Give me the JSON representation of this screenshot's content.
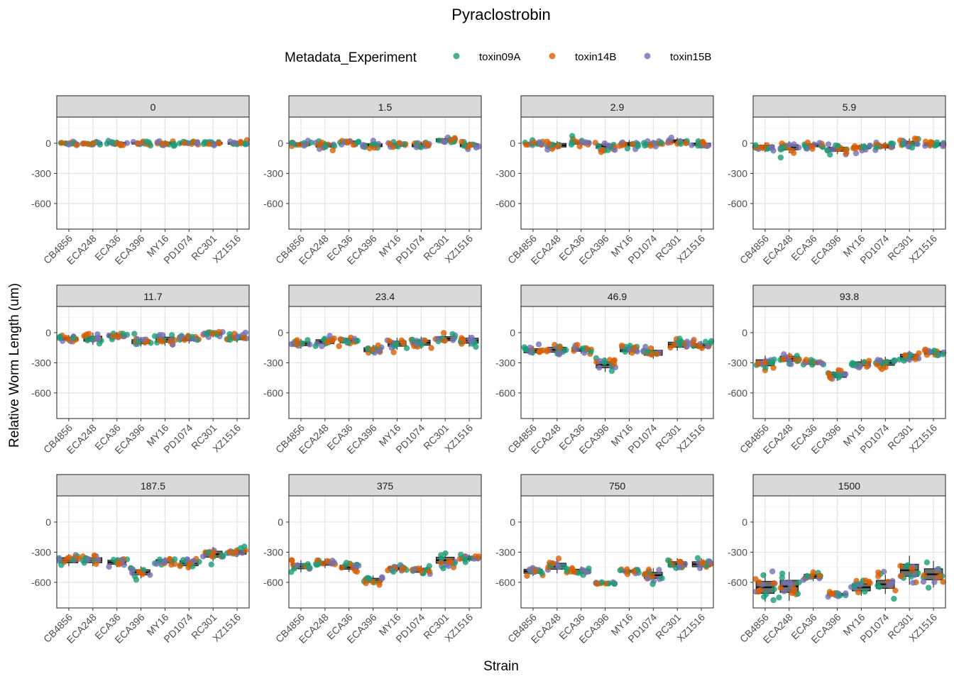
{
  "chart_data": {
    "type": "box-jitter",
    "title": "Pyraclostrobin",
    "xlabel": "Strain",
    "ylabel": "Relative Worm Length (um)",
    "legend": {
      "title": "Metadata_Experiment",
      "position": "top",
      "entries": [
        {
          "name": "toxin09A",
          "color": "#1b9e77"
        },
        {
          "name": "toxin14B",
          "color": "#d95f02"
        },
        {
          "name": "toxin15B",
          "color": "#7570b3"
        }
      ]
    },
    "categories": [
      "CB4856",
      "ECA248",
      "ECA36",
      "ECA396",
      "MY16",
      "PD1074",
      "RC301",
      "XZ1516"
    ],
    "yticks": [
      0,
      -300,
      -600
    ],
    "ylim": [
      -855,
      261
    ],
    "grid": true,
    "facets": [
      {
        "label": "0",
        "medians": [
          0,
          0,
          0,
          0,
          0,
          0,
          0,
          0
        ],
        "spread": [
          20,
          20,
          20,
          20,
          25,
          20,
          20,
          20
        ]
      },
      {
        "label": "1.5",
        "medians": [
          -10,
          -20,
          10,
          -20,
          -15,
          -20,
          30,
          -20
        ],
        "spread": [
          25,
          35,
          25,
          30,
          30,
          30,
          30,
          30
        ]
      },
      {
        "label": "2.9",
        "medians": [
          -5,
          -20,
          5,
          -30,
          -10,
          -5,
          20,
          -10
        ],
        "spread": [
          20,
          35,
          30,
          40,
          35,
          25,
          30,
          25
        ]
      },
      {
        "label": "5.9",
        "medians": [
          -40,
          -40,
          -20,
          -60,
          -40,
          -30,
          0,
          -10
        ],
        "spread": [
          40,
          50,
          30,
          40,
          30,
          35,
          40,
          30
        ]
      },
      {
        "label": "11.7",
        "medians": [
          -60,
          -60,
          -30,
          -90,
          -70,
          -60,
          -10,
          -50
        ],
        "spread": [
          30,
          50,
          30,
          40,
          50,
          40,
          30,
          40
        ]
      },
      {
        "label": "23.4",
        "medians": [
          -110,
          -90,
          -80,
          -170,
          -110,
          -100,
          -60,
          -80
        ],
        "spread": [
          40,
          40,
          40,
          40,
          50,
          50,
          40,
          50
        ]
      },
      {
        "label": "46.9",
        "medians": [
          -180,
          -170,
          -170,
          -320,
          -170,
          -200,
          -120,
          -130
        ],
        "spread": [
          40,
          50,
          30,
          60,
          40,
          50,
          50,
          40
        ]
      },
      {
        "label": "93.8",
        "medians": [
          -300,
          -260,
          -300,
          -420,
          -310,
          -300,
          -240,
          -200
        ],
        "spread": [
          60,
          50,
          30,
          50,
          40,
          50,
          50,
          30
        ]
      },
      {
        "label": "187.5",
        "medians": [
          -380,
          -380,
          -400,
          -500,
          -390,
          -410,
          -320,
          -300
        ],
        "spread": [
          50,
          50,
          40,
          50,
          30,
          50,
          60,
          40
        ]
      },
      {
        "label": "375",
        "medians": [
          -440,
          -410,
          -450,
          -580,
          -460,
          -480,
          -380,
          -360
        ],
        "spread": [
          50,
          40,
          40,
          40,
          30,
          40,
          60,
          30
        ]
      },
      {
        "label": "750",
        "medians": [
          -490,
          -440,
          -490,
          -610,
          -490,
          -530,
          -420,
          -420
        ],
        "spread": [
          40,
          60,
          40,
          10,
          20,
          60,
          50,
          50
        ]
      },
      {
        "label": "1500",
        "medians": [
          -650,
          -640,
          -540,
          -720,
          -650,
          -620,
          -480,
          -520
        ],
        "spread": [
          120,
          120,
          40,
          20,
          70,
          80,
          120,
          110
        ]
      }
    ]
  }
}
